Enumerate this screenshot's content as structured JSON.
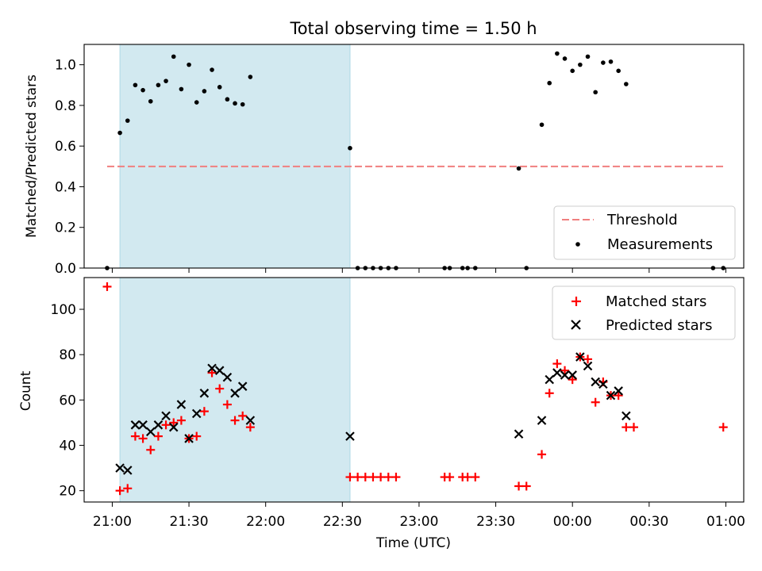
{
  "chart_data": [
    {
      "type": "scatter",
      "title": "Total observing time = 1.50 h",
      "ylabel": "Matched/Predicted stars",
      "xlabel": "",
      "ylim": [
        0,
        1.1
      ],
      "xlim": [
        "20:49",
        "01:07"
      ],
      "yticks": [
        0.0,
        0.2,
        0.4,
        0.6,
        0.8,
        1.0
      ],
      "ytick_labels": [
        "0.0",
        "0.2",
        "0.4",
        "0.6",
        "0.8",
        "1.0"
      ],
      "x_tick_labels_shown": false,
      "observing_window": [
        "21:03",
        "22:33"
      ],
      "observing_window_color": "#d2e9f0",
      "threshold": {
        "value": 0.5,
        "from": "20:58",
        "to": "01:00",
        "color": "#f07f7f",
        "style": "dashed"
      },
      "legend": {
        "position": "lower right",
        "entries": [
          "Threshold",
          "Measurements"
        ]
      },
      "series": [
        {
          "name": "Measurements",
          "marker": "dot",
          "color": "#000000",
          "points": [
            [
              "20:58",
              0.0
            ],
            [
              "21:03",
              0.665
            ],
            [
              "21:06",
              0.725
            ],
            [
              "21:09",
              0.9
            ],
            [
              "21:12",
              0.875
            ],
            [
              "21:15",
              0.82
            ],
            [
              "21:18",
              0.9
            ],
            [
              "21:21",
              0.92
            ],
            [
              "21:24",
              1.04
            ],
            [
              "21:27",
              0.88
            ],
            [
              "21:30",
              1.0
            ],
            [
              "21:33",
              0.815
            ],
            [
              "21:36",
              0.87
            ],
            [
              "21:39",
              0.975
            ],
            [
              "21:42",
              0.89
            ],
            [
              "21:45",
              0.83
            ],
            [
              "21:48",
              0.81
            ],
            [
              "21:51",
              0.805
            ],
            [
              "21:54",
              0.94
            ],
            [
              "22:33",
              0.59
            ],
            [
              "22:36",
              0.0
            ],
            [
              "22:39",
              0.0
            ],
            [
              "22:42",
              0.0
            ],
            [
              "22:45",
              0.0
            ],
            [
              "22:48",
              0.0
            ],
            [
              "22:51",
              0.0
            ],
            [
              "23:10",
              0.0
            ],
            [
              "23:12",
              0.0
            ],
            [
              "23:17",
              0.0
            ],
            [
              "23:19",
              0.0
            ],
            [
              "23:22",
              0.0
            ],
            [
              "23:39",
              0.49
            ],
            [
              "23:42",
              0.0
            ],
            [
              "23:48",
              0.705
            ],
            [
              "23:51",
              0.91
            ],
            [
              "23:54",
              1.055
            ],
            [
              "23:57",
              1.03
            ],
            [
              "00:00",
              0.97
            ],
            [
              "00:03",
              1.0
            ],
            [
              "00:06",
              1.04
            ],
            [
              "00:09",
              0.865
            ],
            [
              "00:12",
              1.01
            ],
            [
              "00:15",
              1.015
            ],
            [
              "00:18",
              0.97
            ],
            [
              "00:21",
              0.905
            ],
            [
              "00:55",
              0.0
            ],
            [
              "00:59",
              0.0
            ]
          ]
        }
      ]
    },
    {
      "type": "scatter",
      "title": "",
      "ylabel": "Count",
      "xlabel": "Time (UTC)",
      "ylim": [
        15,
        114
      ],
      "xlim": [
        "20:49",
        "01:07"
      ],
      "yticks": [
        20,
        40,
        60,
        80,
        100
      ],
      "ytick_labels": [
        "20",
        "40",
        "60",
        "80",
        "100"
      ],
      "x_tick_labels": [
        "21:00",
        "21:30",
        "22:00",
        "22:30",
        "23:00",
        "23:30",
        "00:00",
        "00:30",
        "01:00"
      ],
      "observing_window": [
        "21:03",
        "22:33"
      ],
      "observing_window_color": "#d2e9f0",
      "legend": {
        "position": "upper right",
        "entries": [
          "Matched stars",
          "Predicted stars"
        ]
      },
      "series": [
        {
          "name": "Matched stars",
          "marker": "plus",
          "color": "#ff0000",
          "points": [
            [
              "20:58",
              110
            ],
            [
              "21:03",
              20
            ],
            [
              "21:06",
              21
            ],
            [
              "21:09",
              44
            ],
            [
              "21:12",
              43
            ],
            [
              "21:15",
              38
            ],
            [
              "21:18",
              44
            ],
            [
              "21:21",
              49
            ],
            [
              "21:24",
              50
            ],
            [
              "21:27",
              51
            ],
            [
              "21:30",
              43
            ],
            [
              "21:33",
              44
            ],
            [
              "21:36",
              55
            ],
            [
              "21:39",
              72
            ],
            [
              "21:42",
              65
            ],
            [
              "21:45",
              58
            ],
            [
              "21:48",
              51
            ],
            [
              "21:51",
              53
            ],
            [
              "21:54",
              48
            ],
            [
              "22:33",
              26
            ],
            [
              "22:36",
              26
            ],
            [
              "22:39",
              26
            ],
            [
              "22:42",
              26
            ],
            [
              "22:45",
              26
            ],
            [
              "22:48",
              26
            ],
            [
              "22:51",
              26
            ],
            [
              "23:10",
              26
            ],
            [
              "23:12",
              26
            ],
            [
              "23:17",
              26
            ],
            [
              "23:19",
              26
            ],
            [
              "23:22",
              26
            ],
            [
              "23:39",
              22
            ],
            [
              "23:42",
              22
            ],
            [
              "23:48",
              36
            ],
            [
              "23:51",
              63
            ],
            [
              "23:54",
              76
            ],
            [
              "23:57",
              73
            ],
            [
              "00:00",
              69
            ],
            [
              "00:03",
              79
            ],
            [
              "00:06",
              78
            ],
            [
              "00:09",
              59
            ],
            [
              "00:12",
              68
            ],
            [
              "00:15",
              62
            ],
            [
              "00:18",
              62
            ],
            [
              "00:21",
              48
            ],
            [
              "00:24",
              48
            ],
            [
              "00:59",
              48
            ]
          ]
        },
        {
          "name": "Predicted stars",
          "marker": "cross",
          "color": "#000000",
          "points": [
            [
              "21:03",
              30
            ],
            [
              "21:06",
              29
            ],
            [
              "21:09",
              49
            ],
            [
              "21:12",
              49
            ],
            [
              "21:15",
              46
            ],
            [
              "21:18",
              49
            ],
            [
              "21:21",
              53
            ],
            [
              "21:24",
              48
            ],
            [
              "21:27",
              58
            ],
            [
              "21:30",
              43
            ],
            [
              "21:33",
              54
            ],
            [
              "21:36",
              63
            ],
            [
              "21:39",
              74
            ],
            [
              "21:42",
              73
            ],
            [
              "21:45",
              70
            ],
            [
              "21:48",
              63
            ],
            [
              "21:51",
              66
            ],
            [
              "21:54",
              51
            ],
            [
              "22:33",
              44
            ],
            [
              "23:39",
              45
            ],
            [
              "23:48",
              51
            ],
            [
              "23:51",
              69
            ],
            [
              "23:54",
              72
            ],
            [
              "23:57",
              71
            ],
            [
              "00:00",
              71
            ],
            [
              "00:03",
              79
            ],
            [
              "00:06",
              75
            ],
            [
              "00:09",
              68
            ],
            [
              "00:12",
              67
            ],
            [
              "00:15",
              62
            ],
            [
              "00:18",
              64
            ],
            [
              "00:21",
              53
            ]
          ]
        }
      ]
    }
  ]
}
